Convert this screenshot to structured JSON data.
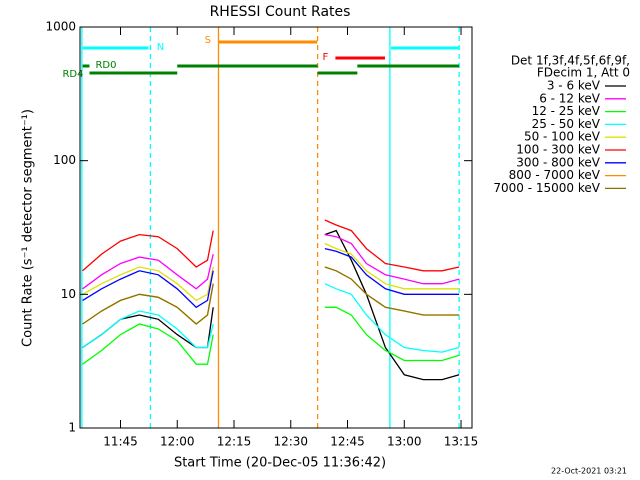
{
  "chart_data": {
    "type": "line",
    "title": "RHESSI Count Rates",
    "xlabel": "Start Time (20-Dec-05 11:36:42)",
    "ylabel": "Count Rate (s⁻¹ detector segment⁻¹)",
    "legend_header": [
      "Det 1f,3f,4f,5f,6f,9f,",
      "FDecim 1, Att 0"
    ],
    "footer": "22-Oct-2021 03:21",
    "log_y": true,
    "xlim": [
      694.3,
      797.9
    ],
    "ylim": [
      1,
      1000
    ],
    "xticks": [
      {
        "value": 705,
        "label": "11:45"
      },
      {
        "value": 720,
        "label": "12:00"
      },
      {
        "value": 735,
        "label": "12:15"
      },
      {
        "value": 750,
        "label": "12:30"
      },
      {
        "value": 765,
        "label": "12:45"
      },
      {
        "value": 780,
        "label": "13:00"
      },
      {
        "value": 795,
        "label": "13:15"
      }
    ],
    "yticks": [
      1,
      10,
      100,
      1000
    ],
    "x": [
      695,
      700,
      705,
      710,
      715,
      720,
      725,
      728,
      729.5,
      null,
      759,
      762,
      766,
      770,
      775,
      780,
      785,
      790,
      794.5
    ],
    "series": [
      {
        "name": "3 - 6 keV",
        "color": "#000000",
        "values": [
          4,
          5,
          6.5,
          7,
          6.5,
          5,
          4,
          4,
          8,
          null,
          28,
          30,
          18,
          10,
          4,
          2.5,
          2.3,
          2.3,
          2.5
        ]
      },
      {
        "name": "6 - 12 keV",
        "color": "#ff00ff",
        "values": [
          11,
          14,
          17,
          19,
          18,
          14,
          11,
          13,
          20,
          null,
          28,
          27,
          24,
          17,
          14,
          13,
          12,
          12,
          13
        ]
      },
      {
        "name": "12 - 25 keV",
        "color": "#00ff00",
        "values": [
          3,
          3.8,
          5,
          6,
          5.5,
          4.5,
          3,
          3,
          5,
          null,
          8,
          8,
          7,
          5,
          3.8,
          3.2,
          3.2,
          3.2,
          3.5
        ]
      },
      {
        "name": "25 - 50 keV",
        "color": "#00ffff",
        "values": [
          4,
          5,
          6.5,
          7.5,
          7,
          5.5,
          4,
          4,
          6,
          null,
          12,
          11,
          10,
          7,
          5,
          4,
          3.8,
          3.7,
          4
        ]
      },
      {
        "name": "50 - 100 keV",
        "color": "#e0e000",
        "values": [
          10,
          12,
          14,
          16,
          15,
          12,
          9,
          10,
          16,
          null,
          24,
          22,
          20,
          15,
          12,
          11,
          11,
          11,
          11
        ]
      },
      {
        "name": "100 - 300 keV",
        "color": "#ff0000",
        "values": [
          15,
          20,
          25,
          28,
          27,
          22,
          16,
          18,
          30,
          null,
          36,
          33,
          30,
          22,
          17,
          16,
          15,
          15,
          16
        ]
      },
      {
        "name": "300 - 800 keV",
        "color": "#0000ff",
        "values": [
          9,
          11,
          13,
          15,
          14,
          11,
          8,
          9,
          15,
          null,
          22,
          21,
          19,
          14,
          11,
          10,
          10,
          10,
          10
        ]
      },
      {
        "name": "800 - 7000 keV",
        "color": "#ff8c00",
        "values": [
          6,
          7.5,
          9,
          10,
          9.5,
          8,
          6,
          7,
          12,
          null,
          16,
          15,
          13,
          10,
          8,
          7.5,
          7,
          7,
          7
        ]
      },
      {
        "name": "7000 - 15000 keV",
        "color": "#8b7500",
        "values": [
          6,
          7.5,
          9,
          10,
          9.5,
          8,
          6,
          7,
          12,
          null,
          16,
          15,
          13,
          10,
          8,
          7.5,
          7,
          7,
          7
        ]
      }
    ],
    "markers": [
      {
        "x": 694.8,
        "color": "#00ffff",
        "dashed": false
      },
      {
        "x": 712.9,
        "color": "#00ffff",
        "dashed": true
      },
      {
        "x": 730.9,
        "color": "#ff8c00",
        "dashed": false
      },
      {
        "x": 757.1,
        "color": "#ff8c00",
        "dashed": true
      },
      {
        "x": 776.2,
        "color": "#00ffff",
        "dashed": false
      },
      {
        "x": 794.5,
        "color": "#00ffff",
        "dashed": true
      }
    ],
    "flags": [
      {
        "label": "S",
        "color": "#ff8c00",
        "spans": [
          [
            731,
            757
          ]
        ]
      },
      {
        "label": "N",
        "color": "#00ffff",
        "spans": [
          [
            695,
            712.4
          ],
          [
            776.5,
            794.5
          ]
        ]
      },
      {
        "label": "F",
        "color": "#ff0000",
        "spans": [
          [
            761.8,
            774.9
          ]
        ]
      },
      {
        "label": "RD0",
        "color": "#008000",
        "spans": [
          [
            695,
            696.8
          ],
          [
            720,
            757.1
          ],
          [
            767.6,
            794.5
          ]
        ]
      },
      {
        "label": "RD4",
        "color": "#008000",
        "spans": [
          [
            696.8,
            720
          ],
          [
            757.1,
            767.6
          ]
        ]
      }
    ]
  }
}
